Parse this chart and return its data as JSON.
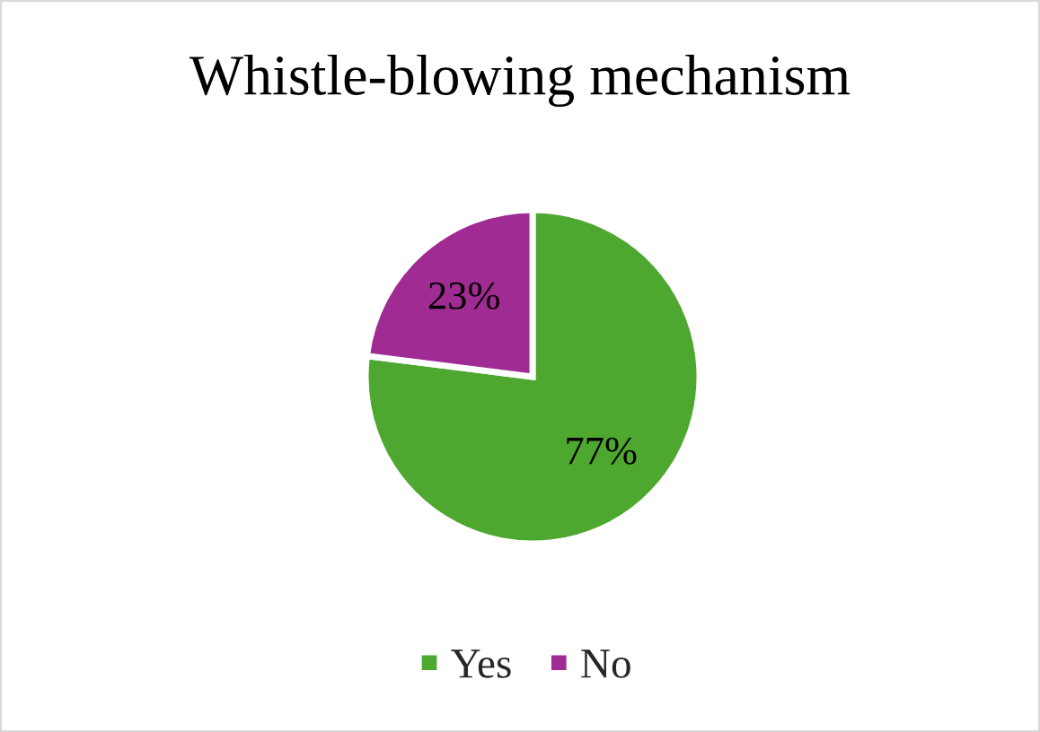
{
  "chart_data": {
    "type": "pie",
    "title": "Whistle-blowing mechanism",
    "categories": [
      "Yes",
      "No"
    ],
    "values": [
      77,
      23
    ],
    "colors": [
      "#4ea72e",
      "#a02b93"
    ],
    "value_labels": [
      "77%",
      "23%"
    ],
    "legend": "bottom"
  }
}
